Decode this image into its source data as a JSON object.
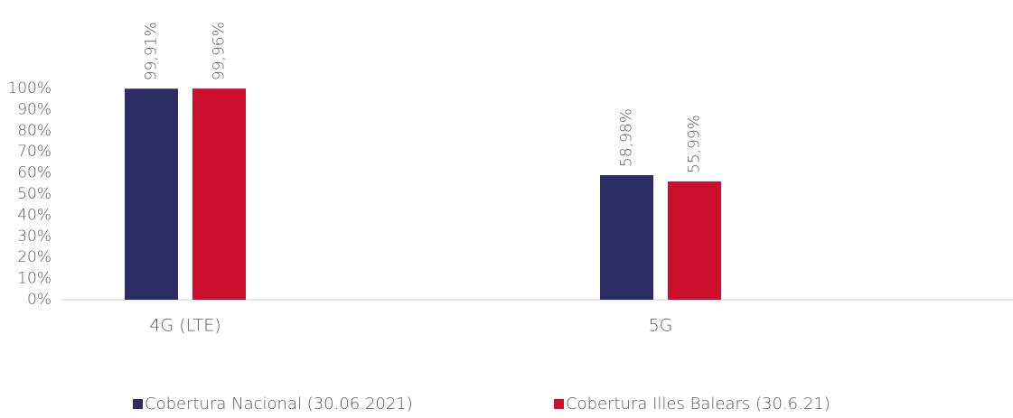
{
  "chart_data": {
    "type": "bar",
    "categories": [
      "4G (LTE)",
      "5G"
    ],
    "series": [
      {
        "name": "Cobertura Nacional (30.06.2021)",
        "color": "#2e2d63",
        "values": [
          99.91,
          58.98
        ],
        "value_labels": [
          "99,91%",
          "58,98%"
        ]
      },
      {
        "name": "Cobertura Illes Balears (30.6.21)",
        "color": "#cc0f2e",
        "values": [
          99.96,
          55.99
        ],
        "value_labels": [
          "99,96%",
          "55,99%"
        ]
      }
    ],
    "ylim": [
      0,
      100
    ],
    "yticks": [
      {
        "value": 0,
        "label": "0%"
      },
      {
        "value": 10,
        "label": "10%"
      },
      {
        "value": 20,
        "label": "20%"
      },
      {
        "value": 30,
        "label": "30%"
      },
      {
        "value": 40,
        "label": "40%"
      },
      {
        "value": 50,
        "label": "50%"
      },
      {
        "value": 60,
        "label": "60%"
      },
      {
        "value": 70,
        "label": "70%"
      },
      {
        "value": 80,
        "label": "80%"
      },
      {
        "value": 90,
        "label": "90%"
      },
      {
        "value": 100,
        "label": "100%"
      }
    ],
    "grid": false,
    "legend": "bottom"
  }
}
